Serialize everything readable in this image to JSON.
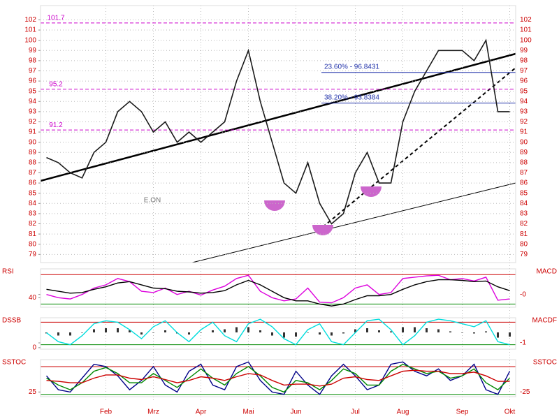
{
  "chart_data": [
    {
      "type": "line",
      "annotation": "E.ON",
      "grid": true,
      "tick_color": "#cc0000",
      "ylim": [
        78.2,
        103.4
      ],
      "yticks": [
        79,
        80,
        81,
        82,
        83,
        84,
        85,
        86,
        87,
        88,
        89,
        90,
        91,
        92,
        93,
        94,
        95,
        96,
        97,
        98,
        99,
        100,
        101,
        102
      ],
      "categories": [
        null,
        null,
        null,
        null,
        null,
        "Feb",
        null,
        null,
        null,
        "Mrz",
        null,
        null,
        null,
        "Apr",
        null,
        null,
        null,
        "Mai",
        null,
        null,
        null,
        "Jun",
        null,
        null,
        null,
        null,
        "Jul",
        null,
        null,
        null,
        "Aug",
        null,
        null,
        null,
        null,
        "Sep",
        null,
        null,
        null,
        "Okt"
      ],
      "levels": [
        101.7,
        95.2,
        91.2
      ],
      "level_color": "#cc00cc",
      "fib": [
        {
          "label": "23.60% - 96.8431",
          "value": 96.8431
        },
        {
          "label": "38.20% - 93.8384",
          "value": 93.8384
        }
      ],
      "fib_color": "#2233aa",
      "series": [
        {
          "color": "#1a1a1a",
          "values": [
            88.5,
            88,
            87,
            86.5,
            89,
            90,
            93,
            94,
            93,
            91,
            92,
            90,
            91,
            90,
            91,
            92,
            96,
            99,
            94,
            90,
            86,
            85,
            88,
            84,
            82,
            83,
            87,
            89,
            86,
            86,
            92,
            95,
            97,
            99,
            99,
            99,
            98,
            100,
            93,
            93
          ]
        }
      ]
    },
    {
      "type": "line",
      "left_label": "RSI",
      "right_label": "MACD",
      "tick_color": "#cc0000",
      "ylim": [
        25,
        85
      ],
      "yticks": [
        40
      ],
      "y2lim": [
        -2,
        4
      ],
      "y2ticks": [
        {
          "value": 0,
          "label": "-0"
        }
      ],
      "hlines": [
        76,
        30
      ],
      "hline_colors": [
        "#cc0000",
        "#008800"
      ],
      "series": [
        {
          "color": "#dd00dd",
          "values": [
            45,
            40,
            38,
            45,
            55,
            60,
            70,
            65,
            50,
            48,
            55,
            45,
            50,
            44,
            52,
            58,
            70,
            75,
            50,
            40,
            35,
            38,
            55,
            33,
            32,
            40,
            55,
            60,
            45,
            48,
            70,
            72,
            74,
            75,
            68,
            70,
            66,
            72,
            36,
            38
          ]
        },
        {
          "color": "#000000",
          "axis": "y2",
          "values": [
            0.8,
            0.5,
            0.2,
            0.3,
            0.8,
            1.2,
            1.8,
            2,
            1.5,
            1,
            0.9,
            0.5,
            0.4,
            0.2,
            0.3,
            0.6,
            1.5,
            2.2,
            1.5,
            0.5,
            -0.5,
            -1,
            -1,
            -1.5,
            -1.8,
            -1.5,
            -0.8,
            -0.2,
            -0.2,
            0,
            0.8,
            1.5,
            2,
            2.3,
            2.3,
            2.2,
            2,
            2.1,
            1.2,
            0.6
          ]
        }
      ]
    },
    {
      "type": "line",
      "left_label": "DSSB",
      "right_label": "MACDF",
      "tick_color": "#cc0000",
      "ylim": [
        -5,
        100
      ],
      "yticks": [
        0
      ],
      "y2lim": [
        -1.6,
        1.4
      ],
      "y2ticks": [
        -1
      ],
      "hlines": [
        85,
        10
      ],
      "hline_colors": [
        "#cc0000",
        "#008800"
      ],
      "series": [
        {
          "type": "bar",
          "color": "#333333",
          "axis": "y2",
          "values": [
            -0.1,
            -0.3,
            -0.3,
            0,
            0.3,
            0.4,
            0.4,
            0.2,
            -0.2,
            0,
            0.2,
            -0.1,
            -0.2,
            0,
            0.2,
            0.3,
            0.5,
            0.5,
            0.2,
            -0.3,
            -0.5,
            -0.4,
            0,
            -0.2,
            -0.3,
            -0.1,
            0.3,
            0.4,
            0.2,
            0.1,
            0.5,
            0.5,
            0.4,
            0.3,
            0.1,
            0,
            -0.1,
            0.1,
            -0.5,
            -0.4
          ]
        },
        {
          "color": "#00dddd",
          "values": [
            50,
            20,
            10,
            40,
            80,
            90,
            85,
            60,
            30,
            70,
            90,
            50,
            20,
            60,
            85,
            40,
            20,
            80,
            95,
            70,
            30,
            10,
            60,
            80,
            20,
            10,
            50,
            90,
            95,
            60,
            10,
            40,
            85,
            95,
            90,
            80,
            70,
            90,
            20,
            10
          ]
        }
      ]
    },
    {
      "type": "line",
      "left_label": "SSTOC",
      "right_label": "SSTOC",
      "tick_color": "#cc0000",
      "ylim": [
        15,
        95
      ],
      "yticks": [
        25
      ],
      "y2lim": [
        15,
        95
      ],
      "y2ticks": [
        {
          "value": 25,
          "label": "-25"
        }
      ],
      "hlines": [
        80,
        20
      ],
      "hline_colors": [
        "#cc0000",
        "#008800"
      ],
      "series": [
        {
          "color": "#000088",
          "values": [
            60,
            30,
            25,
            55,
            85,
            80,
            60,
            30,
            50,
            80,
            40,
            25,
            70,
            85,
            40,
            30,
            80,
            90,
            50,
            25,
            20,
            70,
            40,
            20,
            60,
            85,
            60,
            30,
            40,
            85,
            90,
            70,
            60,
            75,
            50,
            60,
            85,
            30,
            20,
            70
          ]
        },
        {
          "color": "#008800",
          "values": [
            55,
            40,
            30,
            45,
            70,
            78,
            65,
            45,
            45,
            65,
            50,
            35,
            55,
            75,
            55,
            40,
            65,
            80,
            60,
            35,
            25,
            50,
            45,
            30,
            50,
            75,
            65,
            40,
            40,
            70,
            85,
            75,
            65,
            70,
            55,
            60,
            75,
            45,
            30,
            55
          ]
        },
        {
          "color": "#cc0000",
          "values": [
            50,
            48,
            45,
            45,
            55,
            62,
            62,
            55,
            52,
            58,
            52,
            45,
            50,
            58,
            55,
            50,
            58,
            65,
            62,
            50,
            40,
            42,
            42,
            38,
            42,
            55,
            58,
            52,
            50,
            60,
            70,
            72,
            70,
            70,
            65,
            65,
            68,
            60,
            48,
            48
          ]
        }
      ]
    }
  ]
}
